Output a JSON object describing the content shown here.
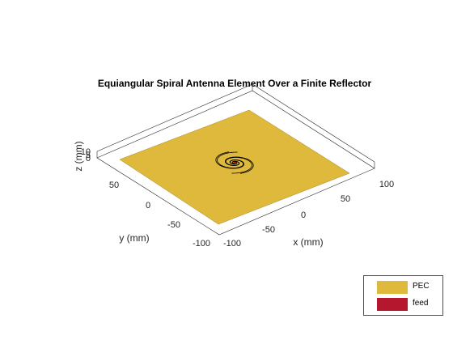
{
  "figure": {
    "title": "Equiangular Spiral Antenna Element Over a Finite Reflector",
    "axes": {
      "x_label": "x (mm)",
      "y_label": "y (mm)",
      "z_label": "z (mm)",
      "x_ticks": [
        "-100",
        "-50",
        "0",
        "50",
        "100"
      ],
      "y_ticks": [
        "-100",
        "-50",
        "0",
        "50"
      ],
      "z_ticks": [
        "0",
        "5",
        "10"
      ]
    },
    "colors": {
      "pec": "#dfb93c",
      "feed": "#b5172e",
      "edge": "#262626"
    },
    "legend": {
      "items": [
        {
          "label": "PEC",
          "color": "#dfb93c"
        },
        {
          "label": "feed",
          "color": "#b5172e"
        }
      ]
    }
  }
}
